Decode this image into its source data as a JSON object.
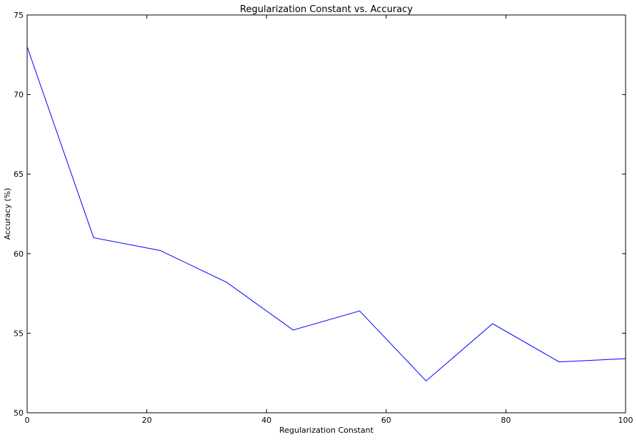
{
  "chart_data": {
    "type": "line",
    "title": "Regularization Constant vs. Accuracy",
    "xlabel": "Regularization Constant",
    "ylabel": "Accuracy (%)",
    "xlim": [
      0,
      100
    ],
    "ylim": [
      50,
      75
    ],
    "xticks": [
      0,
      20,
      40,
      60,
      80,
      100
    ],
    "yticks": [
      50,
      55,
      60,
      65,
      70,
      75
    ],
    "grid": false,
    "line_color": "#0000ff",
    "series": [
      {
        "x": [
          0,
          11.11,
          22.22,
          33.33,
          44.44,
          55.56,
          66.67,
          77.78,
          88.89,
          100
        ],
        "y": [
          73.0,
          61.0,
          60.2,
          58.2,
          55.2,
          56.4,
          52.0,
          55.6,
          53.2,
          53.4
        ]
      }
    ]
  }
}
